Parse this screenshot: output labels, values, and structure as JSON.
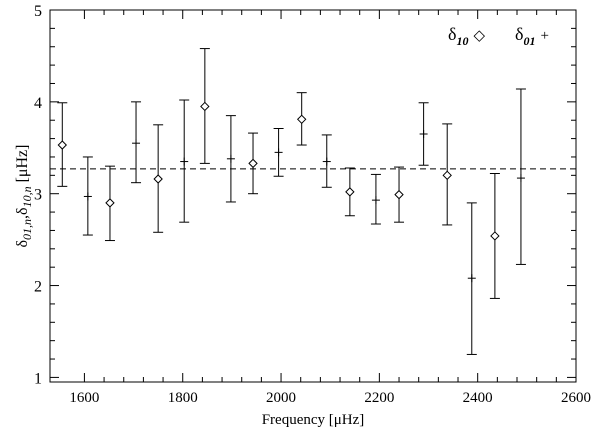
{
  "chart_data": {
    "type": "scatter",
    "xlabel": "Frequency [μHz]",
    "ylabel_parts": {
      "base1": "δ",
      "sub1": "01,n",
      "sep": ",",
      "base2": "δ",
      "sub2": "10,n",
      "unit": " [μHz]"
    },
    "xlim": [
      1530,
      2600
    ],
    "ylim": [
      0.95,
      5.0
    ],
    "xticks": [
      1600,
      1800,
      2000,
      2200,
      2400,
      2600
    ],
    "yticks": [
      1,
      2,
      3,
      4,
      5
    ],
    "grid": false,
    "legend_position": "top-right",
    "reference_line": {
      "y": 3.27,
      "style": "dashed"
    },
    "series": [
      {
        "name": "δ10",
        "legend": {
          "base": "δ",
          "sub": "10",
          "symbol": "◇"
        },
        "marker": "diamond",
        "points": [
          {
            "x": 1555,
            "y": 3.53,
            "lo": 3.08,
            "hi": 3.99
          },
          {
            "x": 1652,
            "y": 2.9,
            "lo": 2.49,
            "hi": 3.3
          },
          {
            "x": 1750,
            "y": 3.16,
            "lo": 2.58,
            "hi": 3.75
          },
          {
            "x": 1845,
            "y": 3.95,
            "lo": 3.33,
            "hi": 4.58
          },
          {
            "x": 1943,
            "y": 3.33,
            "lo": 3.0,
            "hi": 3.66
          },
          {
            "x": 2042,
            "y": 3.81,
            "lo": 3.53,
            "hi": 4.1
          },
          {
            "x": 2140,
            "y": 3.02,
            "lo": 2.76,
            "hi": 3.28
          },
          {
            "x": 2240,
            "y": 2.99,
            "lo": 2.69,
            "hi": 3.29
          },
          {
            "x": 2338,
            "y": 3.2,
            "lo": 2.66,
            "hi": 3.76
          },
          {
            "x": 2435,
            "y": 2.54,
            "lo": 1.86,
            "hi": 3.22
          }
        ]
      },
      {
        "name": "δ01",
        "legend": {
          "base": "δ",
          "sub": "01",
          "symbol": "+"
        },
        "marker": "plus",
        "points": [
          {
            "x": 1607,
            "y": 2.97,
            "lo": 2.55,
            "hi": 3.4
          },
          {
            "x": 1705,
            "y": 3.55,
            "lo": 3.12,
            "hi": 4.0
          },
          {
            "x": 1803,
            "y": 3.35,
            "lo": 2.69,
            "hi": 4.02
          },
          {
            "x": 1898,
            "y": 3.38,
            "lo": 2.91,
            "hi": 3.85
          },
          {
            "x": 1995,
            "y": 3.45,
            "lo": 3.19,
            "hi": 3.71
          },
          {
            "x": 2093,
            "y": 3.35,
            "lo": 3.07,
            "hi": 3.64
          },
          {
            "x": 2193,
            "y": 2.93,
            "lo": 2.67,
            "hi": 3.21
          },
          {
            "x": 2290,
            "y": 3.65,
            "lo": 3.31,
            "hi": 3.99
          },
          {
            "x": 2388,
            "y": 2.08,
            "lo": 1.25,
            "hi": 2.9
          },
          {
            "x": 2488,
            "y": 3.17,
            "lo": 2.23,
            "hi": 4.14
          }
        ]
      }
    ]
  }
}
